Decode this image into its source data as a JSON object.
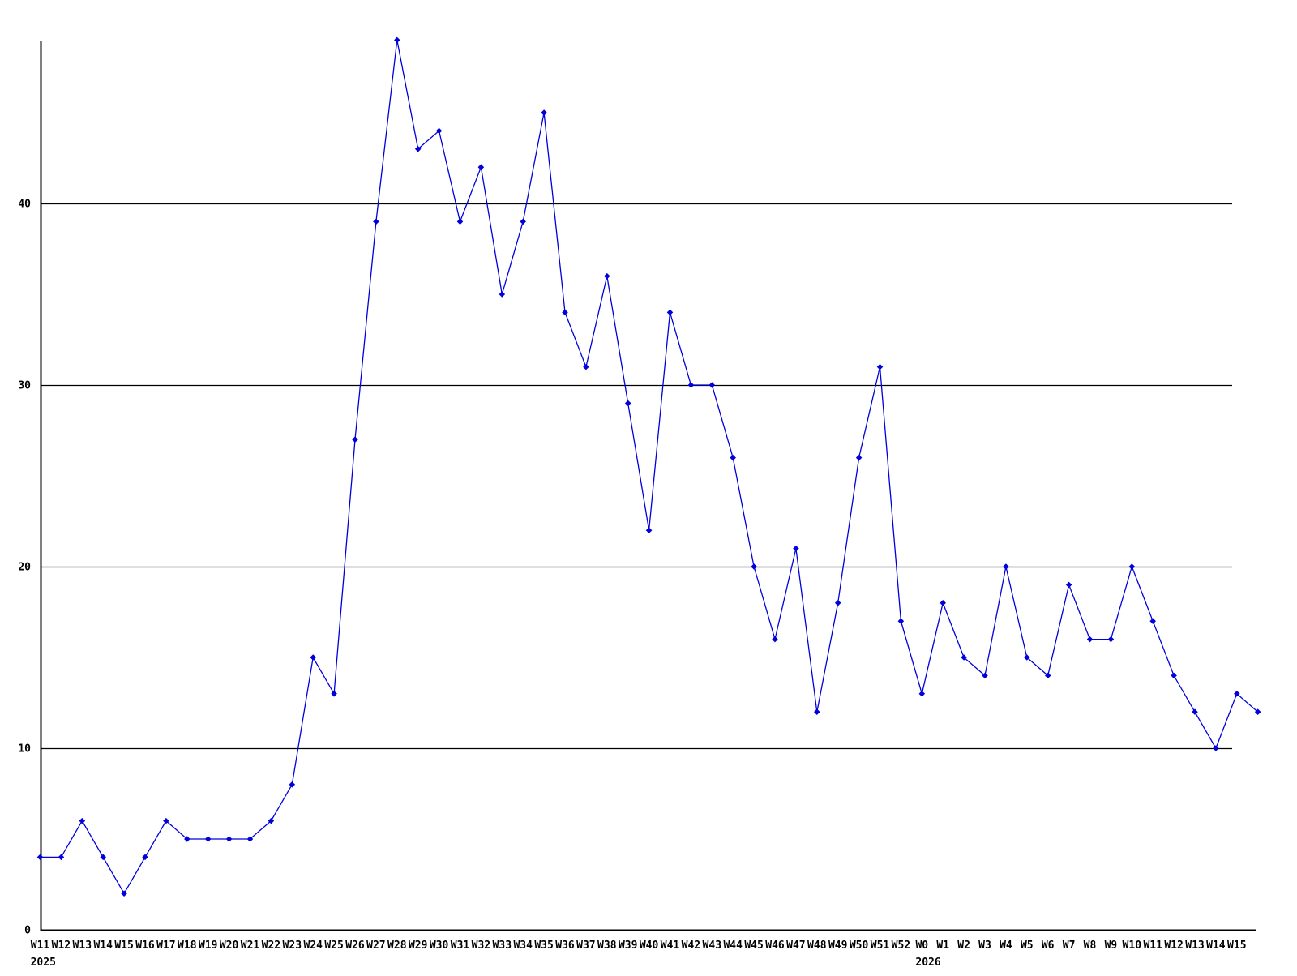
{
  "chart_data": {
    "type": "line",
    "title": "",
    "xlabel": "",
    "ylabel": "",
    "x_labels": [
      "W11",
      "W12",
      "W13",
      "W14",
      "W15",
      "W16",
      "W17",
      "W18",
      "W19",
      "W20",
      "W21",
      "W22",
      "W23",
      "W24",
      "W25",
      "W26",
      "W27",
      "W28",
      "W29",
      "W30",
      "W31",
      "W32",
      "W33",
      "W34",
      "W35",
      "W36",
      "W37",
      "W38",
      "W39",
      "W40",
      "W41",
      "W42",
      "W43",
      "W44",
      "W45",
      "W46",
      "W47",
      "W48",
      "W49",
      "W50",
      "W51",
      "W52",
      "W0",
      "W1",
      "W2",
      "W3",
      "W4",
      "W5",
      "W6",
      "W7",
      "W8",
      "W9",
      "W10",
      "W11",
      "W12",
      "W13",
      "W14",
      "W15",
      ""
    ],
    "values": [
      4,
      4,
      6,
      4,
      2,
      4,
      6,
      5,
      5,
      5,
      5,
      6,
      8,
      15,
      13,
      27,
      39,
      49,
      43,
      44,
      39,
      42,
      35,
      39,
      45,
      34,
      31,
      36,
      29,
      22,
      34,
      30,
      30,
      26,
      20,
      16,
      21,
      12,
      18,
      26,
      31,
      17,
      13,
      18,
      15,
      14,
      20,
      15,
      14,
      19,
      16,
      16,
      20,
      17,
      14,
      12,
      10,
      13,
      12
    ],
    "year_labels": [
      {
        "text": "2025",
        "week_index": 0
      },
      {
        "text": "2026",
        "week_index": 42
      }
    ],
    "y_ticks": [
      0,
      10,
      20,
      30,
      40
    ],
    "ylim": [
      0,
      49
    ],
    "grid": true,
    "legend": "none",
    "line_color": "#0000dd",
    "grid_color": "#000000",
    "axis_color": "#000000"
  }
}
